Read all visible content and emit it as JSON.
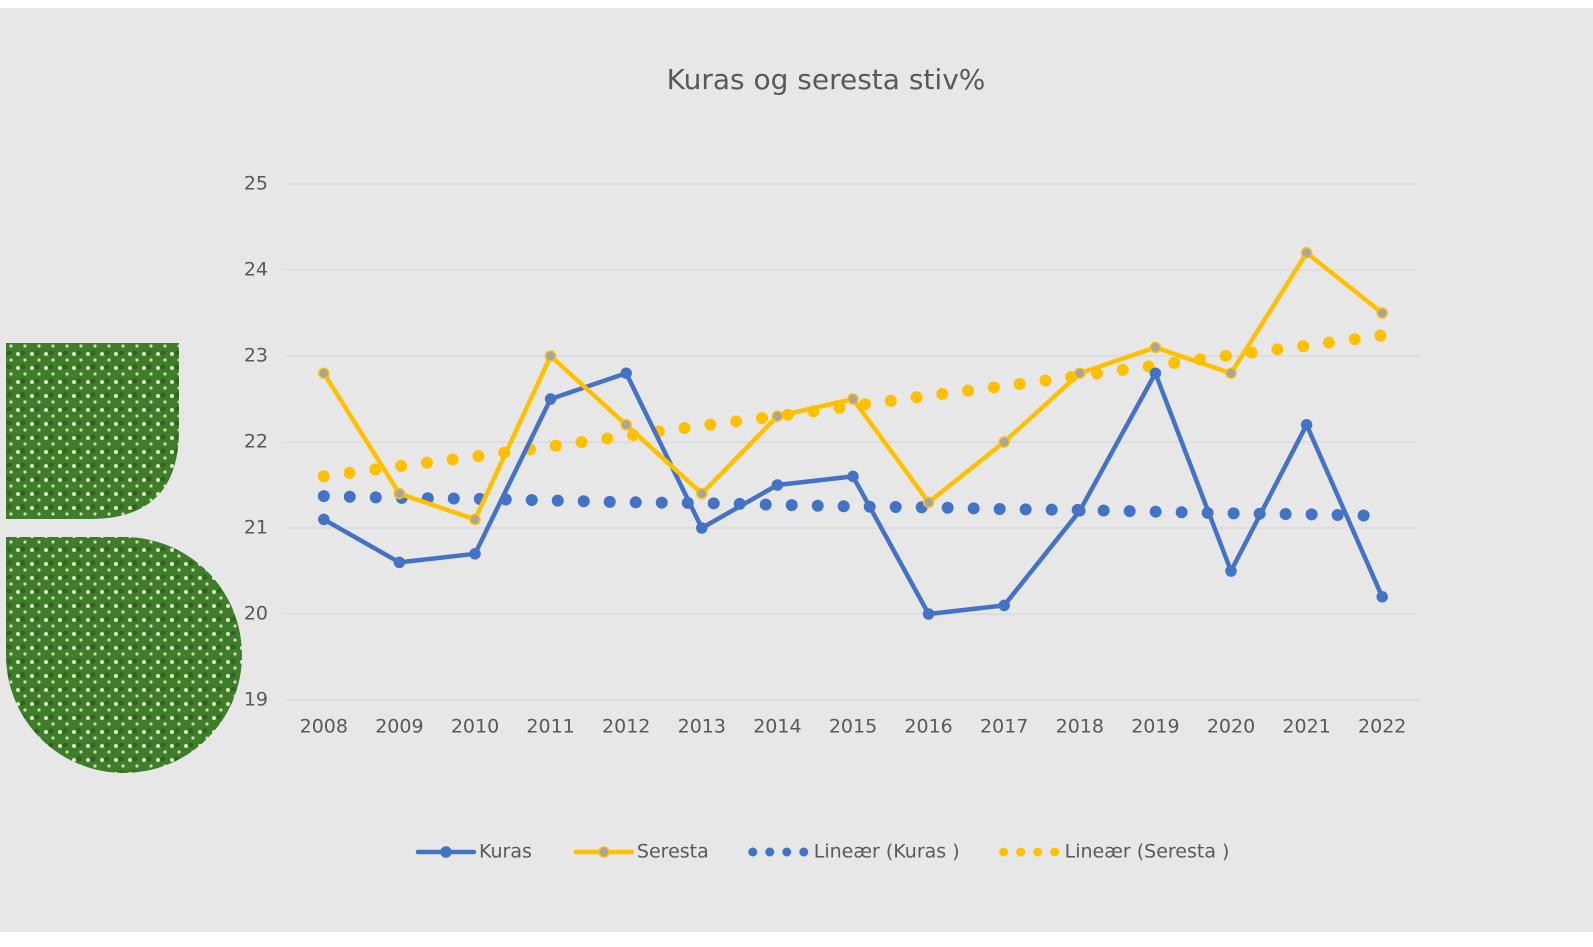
{
  "chart_data": {
    "type": "line",
    "title": "Kuras og seresta stiv%",
    "categories": [
      "2008",
      "2009",
      "2010",
      "2011",
      "2012",
      "2013",
      "2014",
      "2015",
      "2016",
      "2017",
      "2018",
      "2019",
      "2020",
      "2021",
      "2022"
    ],
    "series": [
      {
        "name": "Kuras",
        "color": "#4472c4",
        "style": "solid",
        "marker_fill": "#4472c4",
        "values": [
          21.1,
          20.6,
          20.7,
          22.5,
          22.8,
          21.0,
          21.5,
          21.6,
          20.0,
          20.1,
          21.2,
          22.8,
          20.5,
          22.2,
          20.2
        ]
      },
      {
        "name": "Seresta",
        "color": "#ffc000",
        "style": "solid",
        "marker_fill": "#a5a5a5",
        "values": [
          22.8,
          21.4,
          21.1,
          23.0,
          22.2,
          21.4,
          22.3,
          22.5,
          21.3,
          22.0,
          22.8,
          23.1,
          22.8,
          24.2,
          23.5
        ]
      },
      {
        "name": "Lineær (Kuras )",
        "color": "#4472c4",
        "style": "dotted",
        "values": [
          21.37,
          21.35,
          21.34,
          21.32,
          21.3,
          21.29,
          21.27,
          21.25,
          21.24,
          21.22,
          21.21,
          21.19,
          21.17,
          21.16,
          21.14
        ]
      },
      {
        "name": "Lineær (Seresta )",
        "color": "#ffc000",
        "style": "dotted",
        "values": [
          21.6,
          21.72,
          21.83,
          21.95,
          22.07,
          22.19,
          22.3,
          22.42,
          22.54,
          22.65,
          22.77,
          22.89,
          23.01,
          23.12,
          23.24
        ]
      }
    ],
    "ylim": [
      19,
      25
    ],
    "yticks": [
      19,
      20,
      21,
      22,
      23,
      24,
      25
    ],
    "grid": true,
    "legend": "bottom"
  }
}
